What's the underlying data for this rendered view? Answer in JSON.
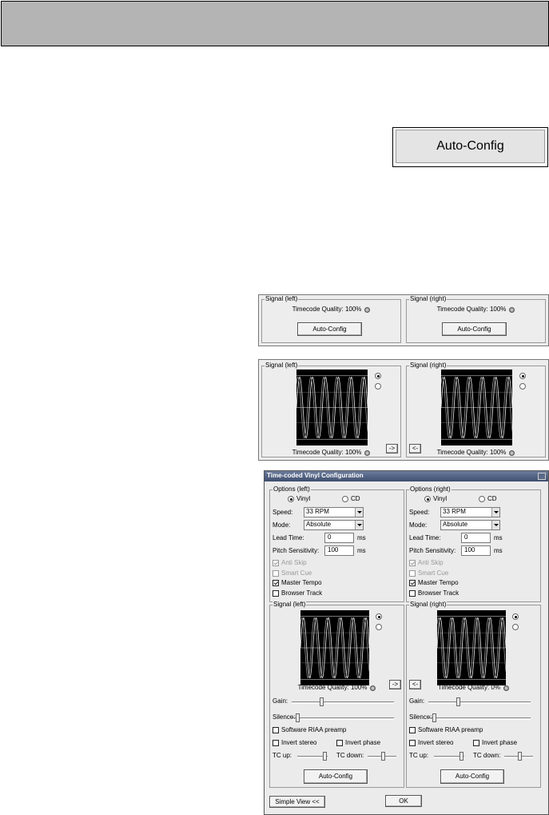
{
  "big_button": {
    "label": "Auto-Config"
  },
  "compact_view": {
    "left": {
      "title": "Signal (left)",
      "quality": "Timecode Quality: 100%",
      "button": "Auto-Config"
    },
    "right": {
      "title": "Signal (right)",
      "quality": "Timecode Quality: 100%",
      "button": "Auto-Config"
    }
  },
  "scope_view": {
    "left": {
      "title": "Signal (left)",
      "quality": "Timecode Quality: 100%",
      "button": "->"
    },
    "right": {
      "title": "Signal (right)",
      "quality": "Timecode Quality: 100%",
      "button": "<-"
    }
  },
  "dialog": {
    "title": "Time-coded Vinyl Configuration",
    "options": {
      "left": {
        "title": "Options (left)",
        "media": [
          "Vinyl",
          "CD"
        ],
        "media_selected": 0,
        "speed_label": "Speed:",
        "speed": "33 RPM",
        "mode_label": "Mode:",
        "mode": "Absolute",
        "lead_time_label": "Lead Time:",
        "lead_time": 0,
        "lead_time_unit": "ms",
        "pitch_label": "Pitch Sensitivity:",
        "pitch": 100,
        "pitch_unit": "ms",
        "checks": [
          {
            "label": "Anti Skip",
            "checked": true,
            "enabled": false
          },
          {
            "label": "Smart Cue",
            "checked": false,
            "enabled": false
          },
          {
            "label": "Master Tempo",
            "checked": true,
            "enabled": true
          },
          {
            "label": "Browser Track",
            "checked": false,
            "enabled": true
          }
        ]
      },
      "right": {
        "title": "Options (right)",
        "media": [
          "Vinyl",
          "CD"
        ],
        "media_selected": 0,
        "speed_label": "Speed:",
        "speed": "33 RPM",
        "mode_label": "Mode:",
        "mode": "Absolute",
        "lead_time_label": "Lead Time:",
        "lead_time": 0,
        "lead_time_unit": "ms",
        "pitch_label": "Pitch Sensitivity:",
        "pitch": 100,
        "pitch_unit": "ms",
        "checks": [
          {
            "label": "Anti Skip",
            "checked": true,
            "enabled": false
          },
          {
            "label": "Smart Cue",
            "checked": false,
            "enabled": false
          },
          {
            "label": "Master Tempo",
            "checked": true,
            "enabled": true
          },
          {
            "label": "Browser Track",
            "checked": false,
            "enabled": true
          }
        ]
      }
    },
    "signal": {
      "left": {
        "title": "Signal (left)",
        "quality": "Timecode Quality: 100%",
        "button": "->",
        "gain": "Gain:",
        "silence": "Silence:",
        "riaa": "Software RIAA preamp",
        "invert_stereo": "Invert stereo",
        "invert_phase": "Invert phase",
        "tc_up": "TC up:",
        "tc_down": "TC down:",
        "auto_config": "Auto-Config"
      },
      "right": {
        "title": "Signal (right)",
        "quality": "Timecode Quality: 0%",
        "button": "<-",
        "gain": "Gain:",
        "silence": "Silence:",
        "riaa": "Software RIAA preamp",
        "invert_stereo": "Invert stereo",
        "invert_phase": "Invert phase",
        "tc_up": "TC up:",
        "tc_down": "TC down:",
        "auto_config": "Auto-Config"
      }
    },
    "simple_view": "Simple View <<",
    "ok": "OK"
  }
}
